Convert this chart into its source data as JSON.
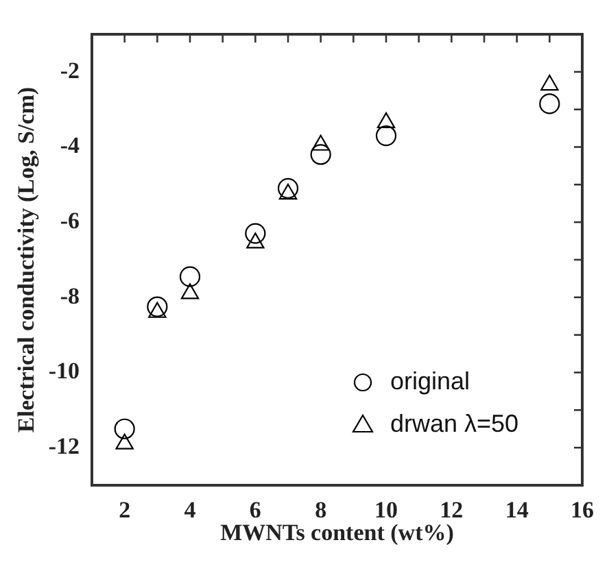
{
  "chart_data": {
    "type": "scatter",
    "xlabel": "MWNTs content (wt%)",
    "ylabel": "Electrical conductivity (Log, S/cm)",
    "x": [
      2,
      3,
      4,
      6,
      7,
      8,
      10,
      15
    ],
    "series": [
      {
        "name": "original",
        "color": "#000000",
        "marker": "circle",
        "values": [
          -11.5,
          -8.25,
          -7.45,
          -6.3,
          -5.1,
          -4.2,
          -3.7,
          -2.85
        ]
      },
      {
        "name": "drwan λ=50",
        "color": "#000000",
        "marker": "triangle",
        "values": [
          -11.9,
          -8.4,
          -7.9,
          -6.55,
          -5.25,
          -3.95,
          -3.35,
          -2.35
        ]
      }
    ],
    "xlim": [
      1,
      16
    ],
    "ylim": [
      -13,
      -1
    ],
    "xticks": [
      {
        "value": 1,
        "label": null
      },
      2,
      {
        "value": 3,
        "label": null
      },
      4,
      {
        "value": 5,
        "label": null
      },
      6,
      {
        "value": 7,
        "label": null
      },
      8,
      {
        "value": 9,
        "label": null
      },
      10,
      {
        "value": 11,
        "label": null
      },
      12,
      {
        "value": 13,
        "label": null
      },
      14,
      {
        "value": 15,
        "label": null
      },
      16
    ],
    "yticks": [
      {
        "value": -13,
        "label": null
      },
      -12,
      {
        "value": -11,
        "label": null
      },
      -10,
      {
        "value": -9,
        "label": null
      },
      -8,
      {
        "value": -7,
        "label": null
      },
      -6,
      {
        "value": -5,
        "label": null
      },
      -4,
      {
        "value": -3,
        "label": null
      },
      -2,
      {
        "value": -1,
        "label": null
      }
    ],
    "grid": false,
    "legend": "bottom right"
  }
}
